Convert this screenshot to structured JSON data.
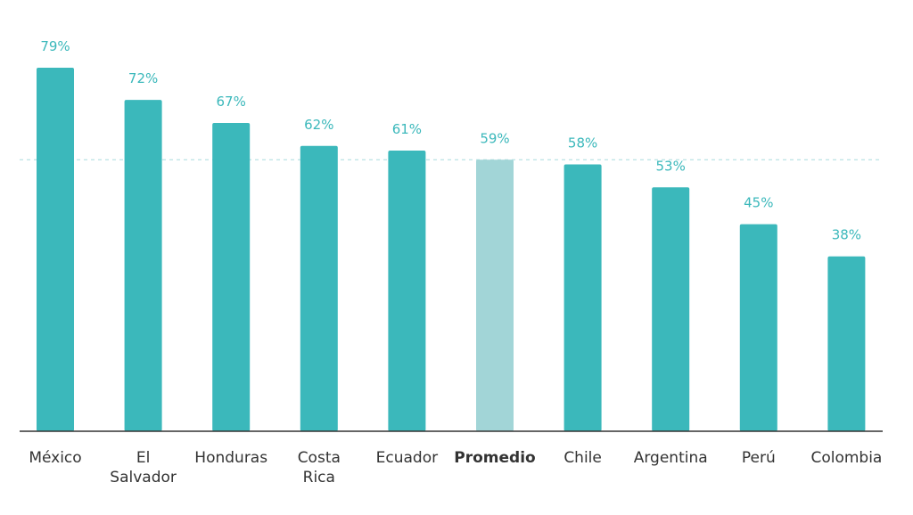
{
  "chart_data": {
    "type": "bar",
    "title": "",
    "xlabel": "",
    "ylabel": "",
    "categories": [
      "México",
      "El Salvador",
      "Honduras",
      "Costa Rica",
      "Ecuador",
      "Promedio",
      "Chile",
      "Argentina",
      "Perú",
      "Colombia"
    ],
    "category_lines": [
      [
        "México"
      ],
      [
        "El",
        "Salvador"
      ],
      [
        "Honduras"
      ],
      [
        "Costa",
        "Rica"
      ],
      [
        "Ecuador"
      ],
      [
        "Promedio"
      ],
      [
        "Chile"
      ],
      [
        "Argentina"
      ],
      [
        "Perú"
      ],
      [
        "Colombia"
      ]
    ],
    "values": [
      79,
      72,
      67,
      62,
      61,
      59,
      58,
      53,
      45,
      38
    ],
    "value_labels": [
      "79%",
      "72%",
      "67%",
      "62%",
      "61%",
      "59%",
      "58%",
      "53%",
      "45%",
      "38%"
    ],
    "highlight_category": "Promedio",
    "reference_line": 59,
    "ylim": [
      0,
      79
    ],
    "grid": false,
    "legend": "none",
    "colors": {
      "bar": "#3bb8bb",
      "highlight_bar": "#a2d5d7",
      "value_label": "#3bb8bb",
      "category_label": "#333333",
      "axis": "#333333",
      "reference_line": "#a9dcdd"
    }
  }
}
